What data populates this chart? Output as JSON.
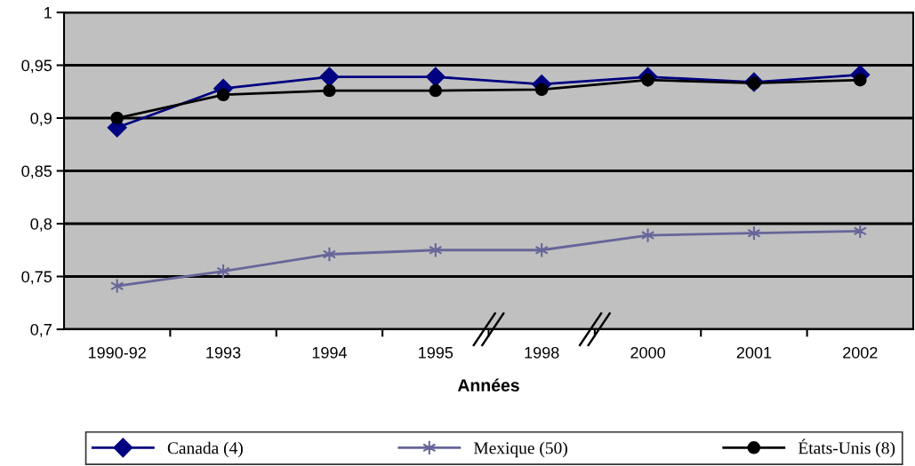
{
  "chart_data": {
    "type": "line",
    "xlabel": "Années",
    "categories": [
      "1990-92",
      "1993",
      "1994",
      "1995",
      "1998",
      "2000",
      "2001",
      "2002"
    ],
    "series": [
      {
        "name": "Canada (4)",
        "color": "#000080",
        "marker": "diamond",
        "values": [
          0.891,
          0.928,
          0.939,
          0.939,
          0.932,
          0.939,
          0.934,
          0.941
        ]
      },
      {
        "name": "Mexique (50)",
        "color": "#666699",
        "marker": "cross",
        "values": [
          0.741,
          0.755,
          0.771,
          0.775,
          0.775,
          0.789,
          0.791,
          0.793
        ]
      },
      {
        "name": "États-Unis (8)",
        "color": "#000000",
        "marker": "circle",
        "values": [
          0.9,
          0.922,
          0.926,
          0.926,
          0.927,
          0.936,
          0.933,
          0.936
        ]
      }
    ],
    "ylim": [
      0.7,
      1
    ],
    "yticks": [
      {
        "value": 0.7,
        "label": "0,7"
      },
      {
        "value": 0.75,
        "label": "0,75"
      },
      {
        "value": 0.8,
        "label": "0,8"
      },
      {
        "value": 0.85,
        "label": "0,85"
      },
      {
        "value": 0.9,
        "label": "0,9"
      },
      {
        "value": 0.95,
        "label": "0,95"
      },
      {
        "value": 1,
        "label": "1"
      }
    ],
    "grid": "y",
    "legend": "bottom"
  }
}
